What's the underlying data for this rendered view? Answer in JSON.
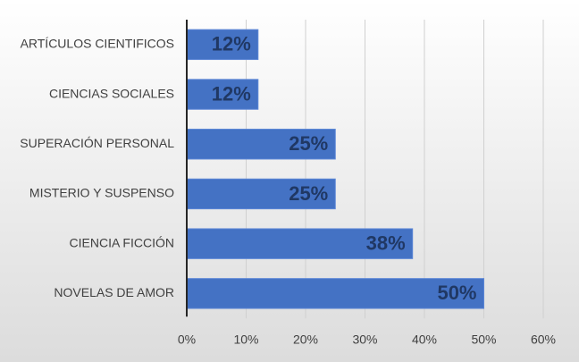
{
  "chart_data": {
    "type": "hbar",
    "categories": [
      "ARTÍCULOS CIENTIFICOS",
      "CIENCIAS SOCIALES",
      "SUPERACIÓN PERSONAL",
      "MISTERIO Y SUSPENSO",
      "CIENCIA FICCIÓN",
      "NOVELAS DE AMOR"
    ],
    "values": [
      12,
      12,
      25,
      25,
      38,
      50
    ],
    "value_labels": [
      "12%",
      "12%",
      "25%",
      "25%",
      "38%",
      "50%"
    ],
    "color": "#4472c4",
    "xlim": [
      0,
      60
    ],
    "xticks": [
      {
        "value": 0,
        "label": "0%"
      },
      {
        "value": 10,
        "label": "10%"
      },
      {
        "value": 20,
        "label": "20%"
      },
      {
        "value": 30,
        "label": "30%"
      },
      {
        "value": 40,
        "label": "40%"
      },
      {
        "value": 50,
        "label": "50%"
      },
      {
        "value": 60,
        "label": "60%"
      }
    ],
    "grid": true
  }
}
